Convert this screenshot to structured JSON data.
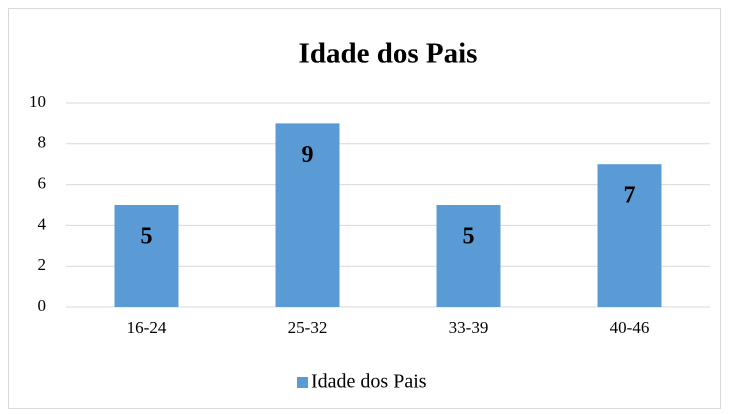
{
  "chart_data": {
    "type": "bar",
    "title": "Idade dos Pais",
    "categories": [
      "16-24",
      "25-32",
      "33-39",
      "40-46"
    ],
    "series": [
      {
        "name": "Idade dos Pais",
        "color": "#5b9bd5",
        "values": [
          5,
          9,
          5,
          7
        ]
      }
    ],
    "ylim": [
      0,
      10
    ],
    "yticks": [
      0,
      2,
      4,
      6,
      8,
      10
    ],
    "grid": true,
    "legend": "bottom"
  }
}
